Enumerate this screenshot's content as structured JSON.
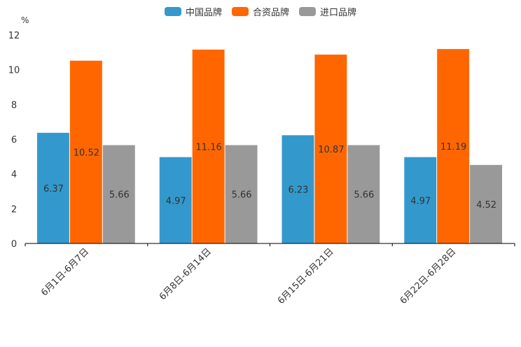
{
  "chart_data": {
    "type": "bar",
    "unit_label": "%",
    "categories": [
      "6月1日-6月7日",
      "6月8日-6月14日",
      "6月15日-6月21日",
      "6月22日-6月28日"
    ],
    "series": [
      {
        "name": "中国品牌",
        "color": "#3399CC",
        "values": [
          6.37,
          4.97,
          6.23,
          4.97
        ],
        "labels": [
          "6.37",
          "4.97",
          "6.23",
          "4.97"
        ]
      },
      {
        "name": "合资品牌",
        "color": "#FF6600",
        "values": [
          10.52,
          11.16,
          10.87,
          11.19
        ],
        "labels": [
          "10.52",
          "11.16",
          "10.87",
          "11.19"
        ]
      },
      {
        "name": "进口品牌",
        "color": "#999999",
        "values": [
          5.66,
          5.66,
          5.66,
          4.52
        ],
        "labels": [
          "5.66",
          "5.66",
          "5.66",
          "4.52"
        ]
      }
    ],
    "yticks": [
      "0",
      "2",
      "4",
      "6",
      "8",
      "10",
      "12"
    ],
    "ylim": [
      0,
      12
    ],
    "grid": false,
    "legend_position": "top-center"
  }
}
